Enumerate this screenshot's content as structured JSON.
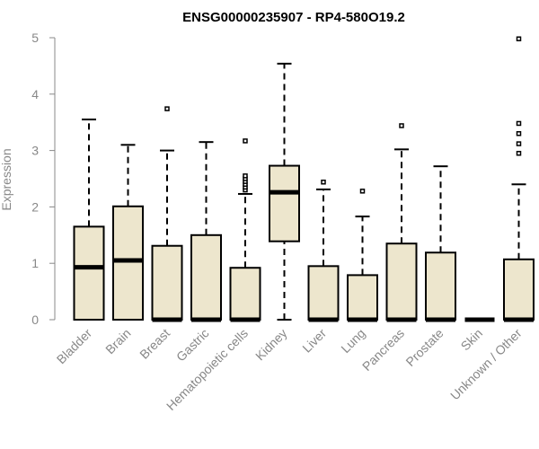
{
  "chart_data": {
    "type": "boxplot",
    "title": "ENSG00000235907 - RP4-580O19.2",
    "xlabel": "",
    "ylabel": "Expression",
    "ylim": [
      0,
      5
    ],
    "yticks": [
      0,
      1,
      2,
      3,
      4,
      5
    ],
    "grid": false,
    "legend": "none",
    "colors": {
      "box_fill": "#ede6cd",
      "stroke": "#000000",
      "axis_text": "#888888"
    },
    "categories": [
      "Bladder",
      "Brain",
      "Breast",
      "Gastric",
      "Hematopoietic cells",
      "Kidney",
      "Liver",
      "Lung",
      "Pancreas",
      "Prostate",
      "Skin",
      "Unknown / Other"
    ],
    "boxes": [
      {
        "category": "Bladder",
        "whisker_low": 0,
        "q1": 0,
        "median": 0.93,
        "q3": 1.65,
        "whisker_high": 3.55,
        "outliers": []
      },
      {
        "category": "Brain",
        "whisker_low": 0,
        "q1": 0,
        "median": 1.05,
        "q3": 2.01,
        "whisker_high": 3.1,
        "outliers": []
      },
      {
        "category": "Breast",
        "whisker_low": 0,
        "q1": 0,
        "median": 0,
        "q3": 1.31,
        "whisker_high": 3.0,
        "outliers": [
          3.74
        ]
      },
      {
        "category": "Gastric",
        "whisker_low": 0,
        "q1": 0,
        "median": 0,
        "q3": 1.5,
        "whisker_high": 3.15,
        "outliers": []
      },
      {
        "category": "Hematopoietic cells",
        "whisker_low": 0,
        "q1": 0,
        "median": 0,
        "q3": 0.92,
        "whisker_high": 2.23,
        "outliers": [
          2.3,
          2.35,
          2.4,
          2.45,
          2.5,
          2.55,
          3.17
        ]
      },
      {
        "category": "Kidney",
        "whisker_low": 0,
        "q1": 1.39,
        "median": 2.26,
        "q3": 2.73,
        "whisker_high": 4.54,
        "outliers": []
      },
      {
        "category": "Liver",
        "whisker_low": 0,
        "q1": 0,
        "median": 0,
        "q3": 0.95,
        "whisker_high": 2.31,
        "outliers": [
          2.44
        ]
      },
      {
        "category": "Lung",
        "whisker_low": 0,
        "q1": 0,
        "median": 0,
        "q3": 0.79,
        "whisker_high": 1.83,
        "outliers": [
          2.28
        ]
      },
      {
        "category": "Pancreas",
        "whisker_low": 0,
        "q1": 0,
        "median": 0,
        "q3": 1.35,
        "whisker_high": 3.02,
        "outliers": [
          3.44
        ]
      },
      {
        "category": "Prostate",
        "whisker_low": 0,
        "q1": 0,
        "median": 0,
        "q3": 1.19,
        "whisker_high": 2.72,
        "outliers": []
      },
      {
        "category": "Skin",
        "whisker_low": 0,
        "q1": 0,
        "median": 0,
        "q3": 0,
        "whisker_high": 0,
        "outliers": []
      },
      {
        "category": "Unknown / Other",
        "whisker_low": 0,
        "q1": 0,
        "median": 0,
        "q3": 1.07,
        "whisker_high": 2.4,
        "outliers": [
          2.95,
          3.12,
          3.3,
          3.48,
          4.98
        ]
      }
    ]
  }
}
